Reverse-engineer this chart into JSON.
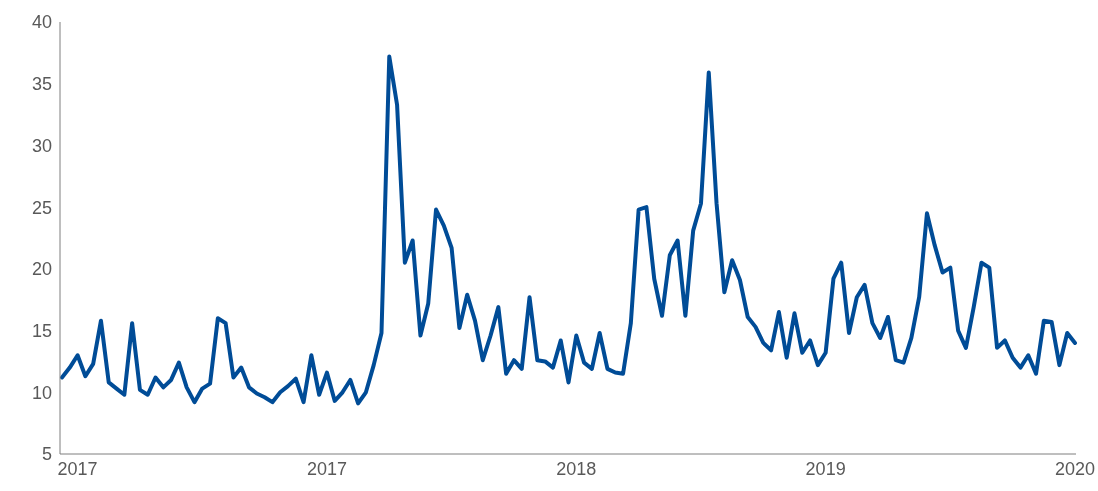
{
  "chart_data": {
    "type": "line",
    "ylim": [
      5,
      40
    ],
    "yticks": [
      5,
      10,
      15,
      20,
      25,
      30,
      35,
      40
    ],
    "grid": false,
    "categories": [
      null,
      null,
      "2017",
      null,
      null,
      null,
      null,
      null,
      null,
      null,
      null,
      null,
      null,
      null,
      null,
      null,
      null,
      null,
      null,
      null,
      null,
      null,
      null,
      null,
      null,
      null,
      null,
      null,
      null,
      null,
      null,
      null,
      null,
      null,
      "2017",
      null,
      null,
      null,
      null,
      null,
      null,
      null,
      null,
      null,
      null,
      null,
      null,
      null,
      null,
      null,
      null,
      null,
      null,
      null,
      null,
      null,
      null,
      null,
      null,
      null,
      null,
      null,
      null,
      null,
      null,
      null,
      "2018",
      null,
      null,
      null,
      null,
      null,
      null,
      null,
      null,
      null,
      null,
      null,
      null,
      null,
      null,
      null,
      null,
      null,
      null,
      null,
      null,
      null,
      null,
      null,
      null,
      null,
      null,
      null,
      null,
      null,
      null,
      null,
      "2019",
      null,
      null,
      null,
      null,
      null,
      null,
      null,
      null,
      null,
      null,
      null,
      null,
      null,
      null,
      null,
      null,
      null,
      null,
      null,
      null,
      null,
      null,
      null,
      null,
      null,
      null,
      null,
      null,
      null,
      null,
      null,
      "2020"
    ],
    "series": [
      {
        "color": "#004c97",
        "values": [
          11.2,
          12.0,
          13.0,
          11.3,
          12.3,
          15.8,
          10.8,
          10.3,
          9.8,
          15.6,
          10.2,
          9.8,
          11.2,
          10.4,
          11.0,
          12.4,
          10.4,
          9.2,
          10.3,
          10.7,
          16.0,
          15.6,
          11.2,
          12.0,
          10.4,
          9.9,
          9.6,
          9.2,
          10.0,
          10.5,
          11.1,
          9.2,
          13.0,
          9.8,
          11.6,
          9.3,
          10.0,
          11.0,
          9.1,
          10.0,
          12.2,
          14.8,
          37.2,
          33.3,
          20.5,
          22.3,
          14.6,
          17.2,
          24.8,
          23.5,
          21.7,
          15.2,
          17.9,
          15.8,
          12.6,
          14.6,
          16.9,
          11.5,
          12.6,
          11.9,
          17.7,
          12.6,
          12.5,
          12.0,
          14.2,
          10.8,
          14.6,
          12.4,
          11.9,
          14.8,
          11.9,
          11.6,
          11.5,
          15.6,
          24.8,
          25.0,
          19.2,
          16.2,
          21.1,
          22.3,
          16.2,
          23.1,
          25.3,
          35.9,
          25.3,
          18.1,
          20.7,
          19.1,
          16.1,
          15.3,
          14.0,
          13.4,
          16.5,
          12.8,
          16.4,
          13.2,
          14.2,
          12.2,
          13.2,
          19.2,
          20.5,
          14.8,
          17.7,
          18.7,
          15.6,
          14.4,
          16.1,
          12.6,
          12.4,
          14.4,
          17.7,
          24.5,
          21.9,
          19.7,
          20.1,
          15.0,
          13.6,
          16.9,
          20.5,
          20.1,
          13.6,
          14.2,
          12.8,
          12.0,
          13.0,
          11.5,
          15.8,
          15.7,
          12.2,
          14.8,
          14.0
        ]
      }
    ]
  }
}
